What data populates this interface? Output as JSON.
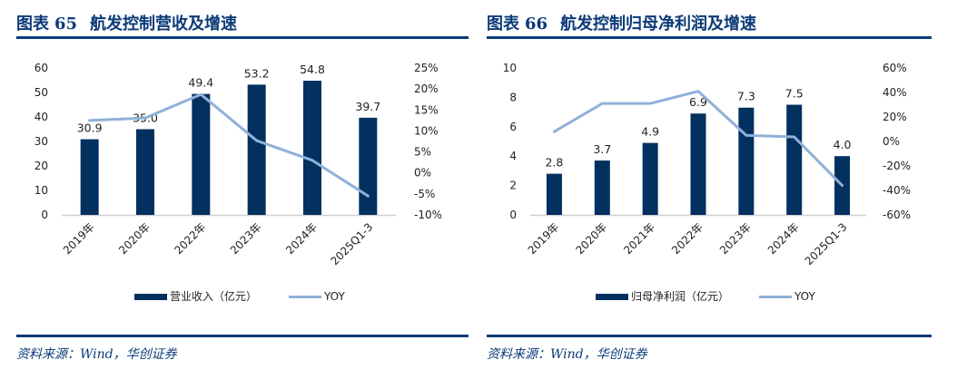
{
  "colors": {
    "bar": "#02305f",
    "line": "#8fb0d9",
    "title": "#0b3a78",
    "axis": "#d0d0d0"
  },
  "panels": [
    {
      "title_prefix": "图表",
      "title_number": "65",
      "title_text": "航发控制营收及增速",
      "source": "资料来源：Wind，华创证券"
    },
    {
      "title_prefix": "图表",
      "title_number": "66",
      "title_text": "航发控制归母净利润及增速",
      "source": "资料来源：Wind，华创证券"
    }
  ],
  "chart_data": [
    {
      "type": "bar+line",
      "title": "航发控制营收及增速",
      "categories": [
        "2019年",
        "2020年",
        "2022年",
        "2023年",
        "2024年",
        "2025Q1-3"
      ],
      "series": [
        {
          "name": "营业收入（亿元）",
          "type": "bar",
          "axis": "left",
          "values": [
            30.9,
            35.0,
            49.4,
            53.2,
            54.8,
            39.7
          ],
          "labels": [
            "30.9",
            "35.0",
            "49.4",
            "53.2",
            "54.8",
            "39.7"
          ]
        },
        {
          "name": "YOY",
          "type": "line",
          "axis": "right",
          "values": [
            12.5,
            13.1,
            18.7,
            7.7,
            3.0,
            -5.5
          ]
        }
      ],
      "left_axis": {
        "min": 0,
        "max": 60,
        "ticks": [
          "0",
          "10",
          "20",
          "30",
          "40",
          "50",
          "60"
        ]
      },
      "right_axis": {
        "min": -10,
        "max": 25,
        "unit": "%",
        "ticks": [
          "-10%",
          "-5%",
          "0%",
          "5%",
          "10%",
          "15%",
          "20%",
          "25%"
        ]
      },
      "legend_position": "bottom",
      "grid": false
    },
    {
      "type": "bar+line",
      "title": "航发控制归母净利润及增速",
      "categories": [
        "2019年",
        "2020年",
        "2021年",
        "2022年",
        "2023年",
        "2024年",
        "2025Q1-3"
      ],
      "series": [
        {
          "name": "归母净利润（亿元）",
          "type": "bar",
          "axis": "left",
          "values": [
            2.8,
            3.7,
            4.9,
            6.9,
            7.3,
            7.5,
            4.0
          ],
          "labels": [
            "2.8",
            "3.7",
            "4.9",
            "6.9",
            "7.3",
            "7.5",
            "4.0"
          ]
        },
        {
          "name": "YOY",
          "type": "line",
          "axis": "right",
          "values": [
            8,
            31,
            31,
            41,
            5,
            3.7,
            -36
          ]
        }
      ],
      "left_axis": {
        "min": 0,
        "max": 10,
        "ticks": [
          "0",
          "2",
          "4",
          "6",
          "8",
          "10"
        ]
      },
      "right_axis": {
        "min": -60,
        "max": 60,
        "unit": "%",
        "ticks": [
          "-60%",
          "-40%",
          "-20%",
          "0%",
          "20%",
          "40%",
          "60%"
        ]
      },
      "legend_position": "bottom",
      "grid": false
    }
  ]
}
